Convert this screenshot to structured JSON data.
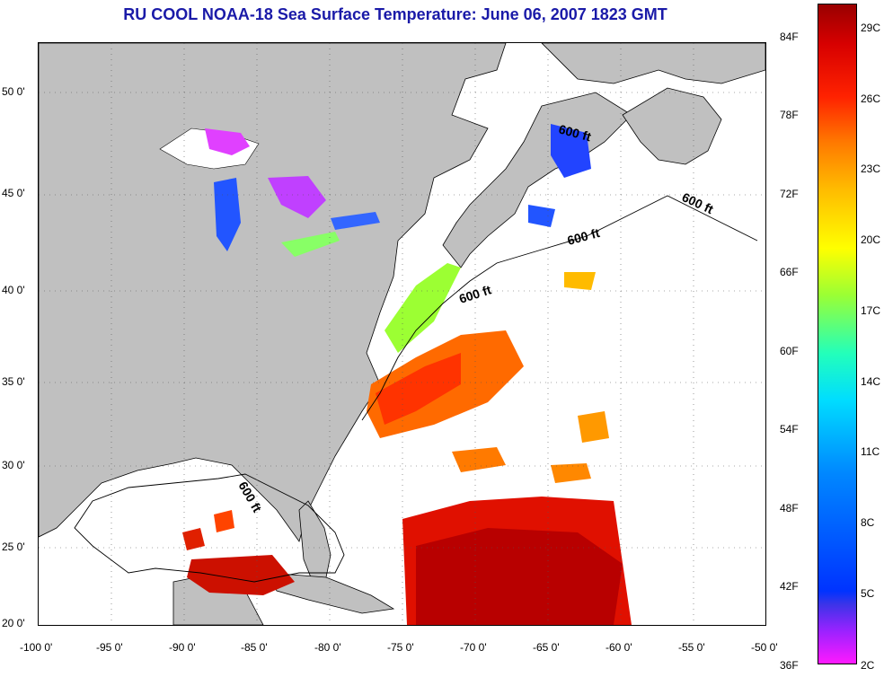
{
  "title": "RU COOL  NOAA-18  Sea Surface Temperature:  June 06, 2007 1823 GMT",
  "map": {
    "region": "US East Coast / Gulf of Mexico / Western Atlantic",
    "lon_range": [
      -100,
      -50
    ],
    "lat_range": [
      20,
      52
    ],
    "land_color": "#c0c0c0",
    "no_data_color": "#ffffff",
    "isobath_labels": [
      "600 ft",
      "600 ft",
      "600 ft",
      "600 ft",
      "600 ft"
    ]
  },
  "axes": {
    "x_ticks": [
      "-100 0'",
      "-95 0'",
      "-90 0'",
      "-85 0'",
      "-80 0'",
      "-75 0'",
      "-70 0'",
      "-65 0'",
      "-60 0'",
      "-55 0'",
      "-50 0'"
    ],
    "y_ticks": [
      "50 0'",
      "45 0'",
      "40 0'",
      "35 0'",
      "30 0'",
      "25 0'",
      "20 0'"
    ]
  },
  "colorbar": {
    "fahrenheit": [
      "84F",
      "78F",
      "72F",
      "66F",
      "60F",
      "54F",
      "48F",
      "42F",
      "36F"
    ],
    "celsius": [
      "29C",
      "26C",
      "23C",
      "20C",
      "17C",
      "14C",
      "11C",
      "8C",
      "5C",
      "2C"
    ],
    "colors": [
      "#ff19ff",
      "#0033ff",
      "#00ddff",
      "#9cff33",
      "#ffff00",
      "#ff7a00",
      "#ff2200",
      "#990000"
    ]
  }
}
